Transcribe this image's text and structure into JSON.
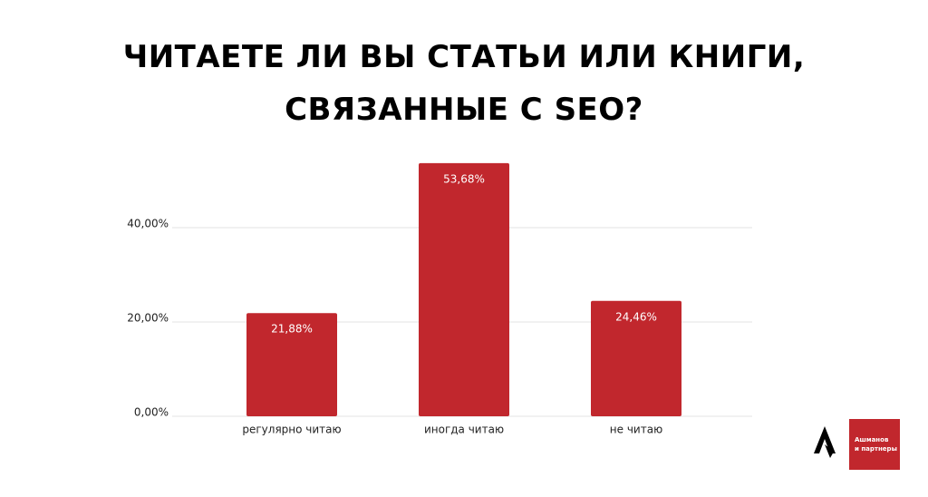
{
  "chart_data": {
    "type": "bar",
    "title": "ЧИТАЕТЕ ЛИ ВЫ СТАТЬИ ИЛИ КНИГИ,\nСВЯЗАННЫЕ С SEO?",
    "categories": [
      "регулярно читаю",
      "иногда читаю",
      "не читаю"
    ],
    "values": [
      21.88,
      53.68,
      24.46
    ],
    "value_labels": [
      "21,88%",
      "53,68%",
      "24,46%"
    ],
    "color": "#c1272d",
    "ylim": [
      0,
      55
    ],
    "yticks": [
      {
        "value": 0,
        "label": "0,00%"
      },
      {
        "value": 20,
        "label": "20,00%"
      },
      {
        "value": 40,
        "label": "40,00%"
      }
    ],
    "grid": true
  },
  "logo": {
    "lines": [
      "Ашманов",
      "и партнеры"
    ]
  }
}
